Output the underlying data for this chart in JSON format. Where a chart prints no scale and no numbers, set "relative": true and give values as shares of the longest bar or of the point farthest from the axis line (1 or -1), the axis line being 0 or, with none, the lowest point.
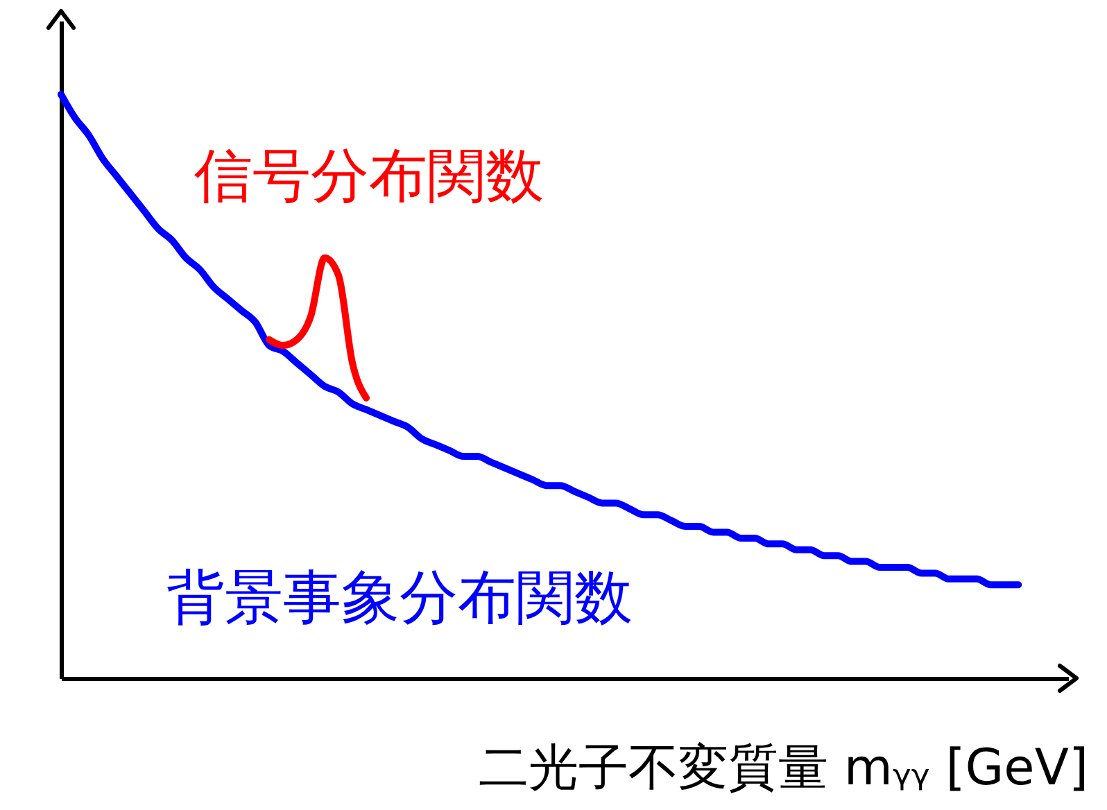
{
  "chart_data": {
    "type": "line",
    "relative": true,
    "xlabel": "二光子不変質量 mᵧᵧ [GeV]",
    "legend": false,
    "grid": false,
    "tick_labels": false,
    "categories": [
      null,
      null,
      null,
      null,
      null,
      null,
      null,
      null,
      null,
      null,
      null,
      null,
      null,
      null,
      null,
      null,
      null,
      null,
      null,
      null,
      null,
      null,
      null,
      null,
      null,
      null,
      null,
      null,
      null,
      null,
      null,
      null,
      null,
      null,
      null,
      null,
      null,
      null,
      null,
      null,
      null,
      null,
      null,
      null,
      null,
      null,
      null,
      null,
      null,
      null,
      null,
      null,
      null,
      null,
      null,
      null,
      null,
      null,
      null,
      null,
      null,
      null,
      null,
      null,
      null,
      null,
      null,
      null,
      null,
      null
    ],
    "series": [
      {
        "name": "背景事象分布関数",
        "color": "#0000ff",
        "values": [
          1.0,
          0.96,
          0.93,
          0.89,
          0.86,
          0.83,
          0.8,
          0.77,
          0.75,
          0.72,
          0.7,
          0.67,
          0.65,
          0.63,
          0.61,
          0.57,
          0.56,
          0.54,
          0.52,
          0.5,
          0.49,
          0.47,
          0.46,
          0.45,
          0.44,
          0.43,
          0.41,
          0.4,
          0.39,
          0.38,
          0.38,
          0.37,
          0.36,
          0.35,
          0.34,
          0.33,
          0.33,
          0.32,
          0.31,
          0.3,
          0.3,
          0.29,
          0.28,
          0.28,
          0.27,
          0.26,
          0.26,
          0.25,
          0.25,
          0.24,
          0.24,
          0.23,
          0.23,
          0.22,
          0.22,
          0.21,
          0.21,
          0.2,
          0.2,
          0.19,
          0.19,
          0.19,
          0.18,
          0.18,
          0.17,
          0.17,
          0.17,
          0.16,
          0.16,
          0.16
        ]
      },
      {
        "name": "信号分布関数",
        "color": "#ff0000",
        "values": [
          null,
          null,
          null,
          null,
          null,
          null,
          null,
          null,
          null,
          null,
          null,
          null,
          null,
          null,
          null,
          0.58,
          0.57,
          0.58,
          0.62,
          0.72,
          0.69,
          0.54,
          0.48,
          null,
          null,
          null,
          null,
          null,
          null,
          null,
          null,
          null,
          null,
          null,
          null,
          null,
          null,
          null,
          null,
          null,
          null,
          null,
          null,
          null,
          null,
          null,
          null,
          null,
          null,
          null,
          null,
          null,
          null,
          null,
          null,
          null,
          null,
          null,
          null,
          null,
          null,
          null,
          null,
          null,
          null,
          null,
          null,
          null,
          null,
          null
        ]
      }
    ]
  }
}
